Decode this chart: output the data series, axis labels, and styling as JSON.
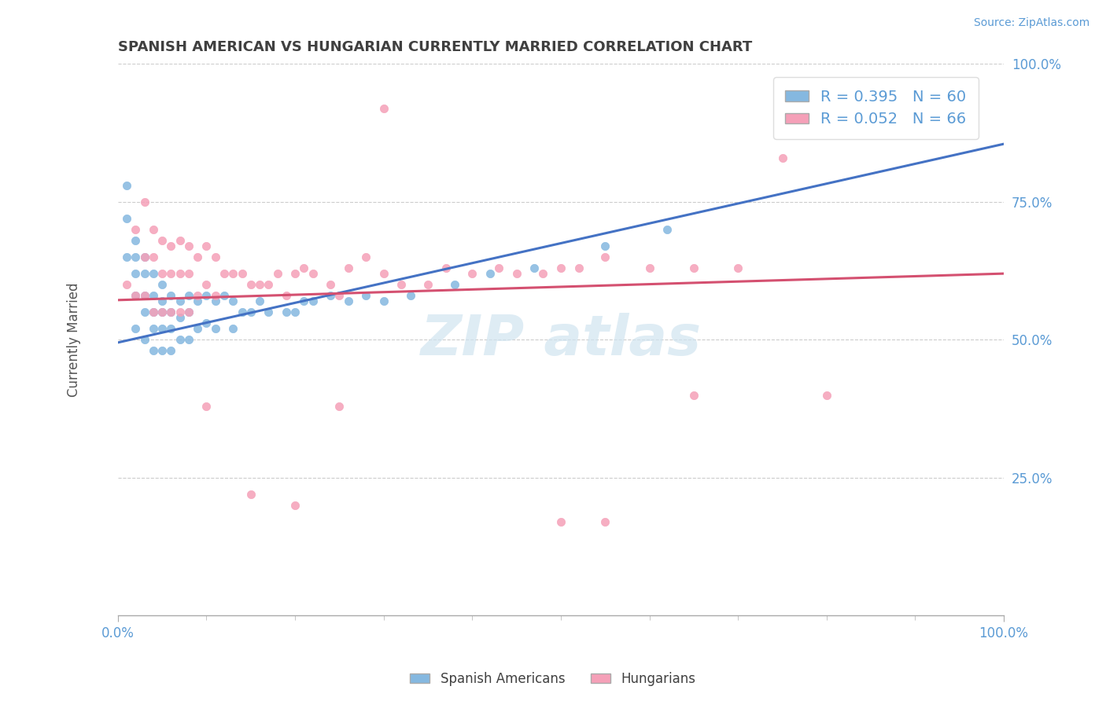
{
  "title": "SPANISH AMERICAN VS HUNGARIAN CURRENTLY MARRIED CORRELATION CHART",
  "source_text": "Source: ZipAtlas.com",
  "ylabel": "Currently Married",
  "xlim": [
    0.0,
    1.0
  ],
  "ylim": [
    0.0,
    1.0
  ],
  "blue_color": "#85b8e0",
  "pink_color": "#f5a0b8",
  "blue_line_color": "#4472c4",
  "pink_line_color": "#d45070",
  "title_color": "#404040",
  "axis_label_color": "#5b9bd5",
  "watermark_color": "#d0e4f0",
  "blue_R": 0.395,
  "blue_N": 60,
  "pink_R": 0.052,
  "pink_N": 66,
  "blue_line_start_y": 0.495,
  "blue_line_end_y": 0.855,
  "pink_line_start_y": 0.572,
  "pink_line_end_y": 0.62,
  "blue_scatter_x": [
    0.01,
    0.01,
    0.01,
    0.02,
    0.02,
    0.02,
    0.02,
    0.02,
    0.03,
    0.03,
    0.03,
    0.03,
    0.03,
    0.04,
    0.04,
    0.04,
    0.04,
    0.04,
    0.05,
    0.05,
    0.05,
    0.05,
    0.05,
    0.06,
    0.06,
    0.06,
    0.06,
    0.07,
    0.07,
    0.07,
    0.08,
    0.08,
    0.08,
    0.09,
    0.09,
    0.1,
    0.1,
    0.11,
    0.11,
    0.12,
    0.13,
    0.13,
    0.14,
    0.15,
    0.16,
    0.17,
    0.19,
    0.2,
    0.21,
    0.22,
    0.24,
    0.26,
    0.28,
    0.3,
    0.33,
    0.38,
    0.42,
    0.47,
    0.55,
    0.62
  ],
  "blue_scatter_y": [
    0.78,
    0.72,
    0.65,
    0.68,
    0.65,
    0.62,
    0.58,
    0.52,
    0.65,
    0.62,
    0.58,
    0.55,
    0.5,
    0.62,
    0.58,
    0.55,
    0.52,
    0.48,
    0.6,
    0.57,
    0.55,
    0.52,
    0.48,
    0.58,
    0.55,
    0.52,
    0.48,
    0.57,
    0.54,
    0.5,
    0.58,
    0.55,
    0.5,
    0.57,
    0.52,
    0.58,
    0.53,
    0.57,
    0.52,
    0.58,
    0.57,
    0.52,
    0.55,
    0.55,
    0.57,
    0.55,
    0.55,
    0.55,
    0.57,
    0.57,
    0.58,
    0.57,
    0.58,
    0.57,
    0.58,
    0.6,
    0.62,
    0.63,
    0.67,
    0.7
  ],
  "pink_scatter_x": [
    0.01,
    0.02,
    0.02,
    0.03,
    0.03,
    0.03,
    0.04,
    0.04,
    0.04,
    0.05,
    0.05,
    0.05,
    0.06,
    0.06,
    0.06,
    0.07,
    0.07,
    0.07,
    0.08,
    0.08,
    0.08,
    0.09,
    0.09,
    0.1,
    0.1,
    0.11,
    0.11,
    0.12,
    0.13,
    0.14,
    0.15,
    0.16,
    0.17,
    0.18,
    0.19,
    0.2,
    0.21,
    0.22,
    0.24,
    0.25,
    0.26,
    0.28,
    0.3,
    0.32,
    0.35,
    0.37,
    0.4,
    0.43,
    0.45,
    0.48,
    0.5,
    0.52,
    0.55,
    0.6,
    0.65,
    0.7,
    0.75,
    0.8,
    0.3,
    0.5,
    0.1,
    0.15,
    0.2,
    0.25,
    0.55,
    0.65
  ],
  "pink_scatter_y": [
    0.6,
    0.7,
    0.58,
    0.75,
    0.65,
    0.58,
    0.7,
    0.65,
    0.55,
    0.68,
    0.62,
    0.55,
    0.67,
    0.62,
    0.55,
    0.68,
    0.62,
    0.55,
    0.67,
    0.62,
    0.55,
    0.65,
    0.58,
    0.67,
    0.6,
    0.65,
    0.58,
    0.62,
    0.62,
    0.62,
    0.6,
    0.6,
    0.6,
    0.62,
    0.58,
    0.62,
    0.63,
    0.62,
    0.6,
    0.58,
    0.63,
    0.65,
    0.62,
    0.6,
    0.6,
    0.63,
    0.62,
    0.63,
    0.62,
    0.62,
    0.63,
    0.63,
    0.65,
    0.63,
    0.63,
    0.63,
    0.83,
    0.4,
    0.92,
    0.17,
    0.38,
    0.22,
    0.2,
    0.38,
    0.17,
    0.4
  ]
}
